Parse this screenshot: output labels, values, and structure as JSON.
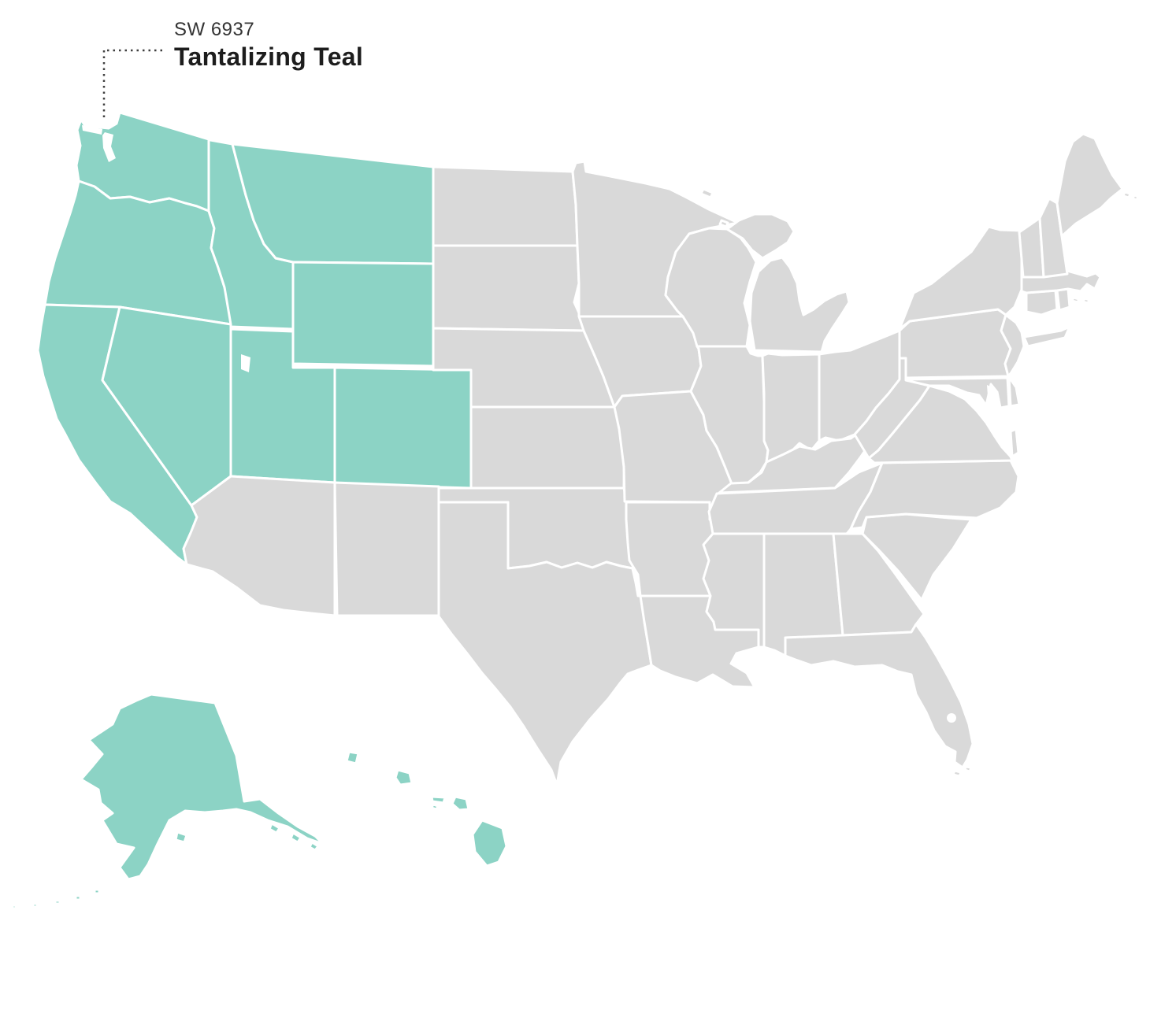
{
  "label": {
    "code": "SW 6937",
    "name": "Tantalizing Teal"
  },
  "colors": {
    "highlight": "#8CD3C5",
    "base": "#D9D9D9",
    "border": "#FFFFFF",
    "background": "#FFFFFF",
    "leader": "#3F3F3F",
    "label_code": "#343434",
    "label_name": "#1D1D1D"
  },
  "map": {
    "region": "United States",
    "highlighted_states": [
      "Washington",
      "Oregon",
      "California",
      "Nevada",
      "Idaho",
      "Montana",
      "Wyoming",
      "Utah",
      "Colorado",
      "Alaska",
      "Hawaii"
    ],
    "states": [
      {
        "id": "WA",
        "name": "Washington",
        "highlighted": true
      },
      {
        "id": "OR",
        "name": "Oregon",
        "highlighted": true
      },
      {
        "id": "CA",
        "name": "California",
        "highlighted": true
      },
      {
        "id": "NV",
        "name": "Nevada",
        "highlighted": true
      },
      {
        "id": "ID",
        "name": "Idaho",
        "highlighted": true
      },
      {
        "id": "MT",
        "name": "Montana",
        "highlighted": true
      },
      {
        "id": "WY",
        "name": "Wyoming",
        "highlighted": true
      },
      {
        "id": "UT",
        "name": "Utah",
        "highlighted": true
      },
      {
        "id": "CO",
        "name": "Colorado",
        "highlighted": true
      },
      {
        "id": "AK",
        "name": "Alaska",
        "highlighted": true
      },
      {
        "id": "HI",
        "name": "Hawaii",
        "highlighted": true
      },
      {
        "id": "AZ",
        "name": "Arizona",
        "highlighted": false
      },
      {
        "id": "NM",
        "name": "New Mexico",
        "highlighted": false
      },
      {
        "id": "ND",
        "name": "North Dakota",
        "highlighted": false
      },
      {
        "id": "SD",
        "name": "South Dakota",
        "highlighted": false
      },
      {
        "id": "NE",
        "name": "Nebraska",
        "highlighted": false
      },
      {
        "id": "KS",
        "name": "Kansas",
        "highlighted": false
      },
      {
        "id": "OK",
        "name": "Oklahoma",
        "highlighted": false
      },
      {
        "id": "TX",
        "name": "Texas",
        "highlighted": false
      },
      {
        "id": "MN",
        "name": "Minnesota",
        "highlighted": false
      },
      {
        "id": "IA",
        "name": "Iowa",
        "highlighted": false
      },
      {
        "id": "MO",
        "name": "Missouri",
        "highlighted": false
      },
      {
        "id": "AR",
        "name": "Arkansas",
        "highlighted": false
      },
      {
        "id": "LA",
        "name": "Louisiana",
        "highlighted": false
      },
      {
        "id": "WI",
        "name": "Wisconsin",
        "highlighted": false
      },
      {
        "id": "IL",
        "name": "Illinois",
        "highlighted": false
      },
      {
        "id": "MI",
        "name": "Michigan",
        "highlighted": false
      },
      {
        "id": "IN",
        "name": "Indiana",
        "highlighted": false
      },
      {
        "id": "OH",
        "name": "Ohio",
        "highlighted": false
      },
      {
        "id": "KY",
        "name": "Kentucky",
        "highlighted": false
      },
      {
        "id": "TN",
        "name": "Tennessee",
        "highlighted": false
      },
      {
        "id": "MS",
        "name": "Mississippi",
        "highlighted": false
      },
      {
        "id": "AL",
        "name": "Alabama",
        "highlighted": false
      },
      {
        "id": "GA",
        "name": "Georgia",
        "highlighted": false
      },
      {
        "id": "FL",
        "name": "Florida",
        "highlighted": false
      },
      {
        "id": "SC",
        "name": "South Carolina",
        "highlighted": false
      },
      {
        "id": "NC",
        "name": "North Carolina",
        "highlighted": false
      },
      {
        "id": "VA",
        "name": "Virginia",
        "highlighted": false
      },
      {
        "id": "WV",
        "name": "West Virginia",
        "highlighted": false
      },
      {
        "id": "OH2",
        "name": "",
        "highlighted": false
      },
      {
        "id": "MD",
        "name": "Maryland",
        "highlighted": false
      },
      {
        "id": "DE",
        "name": "Delaware",
        "highlighted": false
      },
      {
        "id": "PA",
        "name": "Pennsylvania",
        "highlighted": false
      },
      {
        "id": "NJ",
        "name": "New Jersey",
        "highlighted": false
      },
      {
        "id": "NY",
        "name": "New York",
        "highlighted": false
      },
      {
        "id": "CT",
        "name": "Connecticut",
        "highlighted": false
      },
      {
        "id": "RI",
        "name": "Rhode Island",
        "highlighted": false
      },
      {
        "id": "MA",
        "name": "Massachusetts",
        "highlighted": false
      },
      {
        "id": "VT",
        "name": "Vermont",
        "highlighted": false
      },
      {
        "id": "NH",
        "name": "New Hampshire",
        "highlighted": false
      },
      {
        "id": "ME",
        "name": "Maine",
        "highlighted": false
      }
    ]
  }
}
